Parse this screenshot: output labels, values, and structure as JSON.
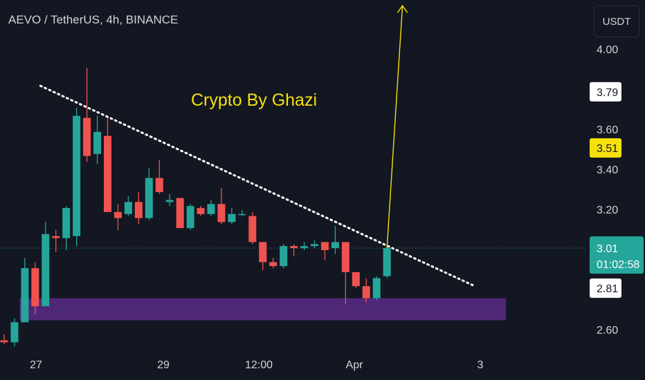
{
  "header": {
    "title": "AEVO / TetherUS, 4h, BINANCE"
  },
  "currency_button": {
    "label": "USDT"
  },
  "annotation": {
    "text": "Crypto By Ghazi"
  },
  "colors": {
    "up": "#26a69a",
    "down": "#ef5350",
    "background": "#131722",
    "annotation": "#f5e10a",
    "support_zone": "#5b2a86",
    "arrow": "#f5e10a"
  },
  "price_labels": [
    {
      "value": "3.79",
      "style": "white"
    },
    {
      "value": "3.51",
      "style": "yellow"
    },
    {
      "value": "2.81",
      "style": "white"
    }
  ],
  "last_price": {
    "value": "3.01",
    "countdown": "01:02:58"
  },
  "chart_data": {
    "type": "candlestick",
    "symbol": "AEVO/USDT",
    "timeframe": "4h",
    "exchange": "BINANCE",
    "y_ticks": [
      "4.00",
      "3.60",
      "3.40",
      "3.20",
      "2.60"
    ],
    "y_range": [
      2.5,
      4.2
    ],
    "x_ticks": [
      "27",
      "29",
      "12:00",
      "Apr",
      "3"
    ],
    "candles": [
      {
        "o": 2.55,
        "h": 2.58,
        "l": 2.53,
        "c": 2.54
      },
      {
        "o": 2.54,
        "h": 2.66,
        "l": 2.52,
        "c": 2.64
      },
      {
        "o": 2.64,
        "h": 2.96,
        "l": 2.64,
        "c": 2.91
      },
      {
        "o": 2.91,
        "h": 2.94,
        "l": 2.68,
        "c": 2.72
      },
      {
        "o": 2.72,
        "h": 3.14,
        "l": 2.72,
        "c": 3.08
      },
      {
        "o": 3.07,
        "h": 3.1,
        "l": 2.99,
        "c": 3.06
      },
      {
        "o": 3.06,
        "h": 3.22,
        "l": 3.0,
        "c": 3.21
      },
      {
        "o": 3.07,
        "h": 3.71,
        "l": 3.02,
        "c": 3.67
      },
      {
        "o": 3.66,
        "h": 3.91,
        "l": 3.44,
        "c": 3.47
      },
      {
        "o": 3.48,
        "h": 3.67,
        "l": 3.43,
        "c": 3.59
      },
      {
        "o": 3.57,
        "h": 3.67,
        "l": 3.19,
        "c": 3.19
      },
      {
        "o": 3.19,
        "h": 3.23,
        "l": 3.1,
        "c": 3.16
      },
      {
        "o": 3.18,
        "h": 3.27,
        "l": 3.17,
        "c": 3.24
      },
      {
        "o": 3.24,
        "h": 3.29,
        "l": 3.13,
        "c": 3.16
      },
      {
        "o": 3.16,
        "h": 3.41,
        "l": 3.15,
        "c": 3.36
      },
      {
        "o": 3.36,
        "h": 3.45,
        "l": 3.28,
        "c": 3.29
      },
      {
        "o": 3.24,
        "h": 3.28,
        "l": 3.22,
        "c": 3.25
      },
      {
        "o": 3.26,
        "h": 3.26,
        "l": 3.11,
        "c": 3.11
      },
      {
        "o": 3.11,
        "h": 3.23,
        "l": 3.1,
        "c": 3.22
      },
      {
        "o": 3.21,
        "h": 3.22,
        "l": 3.17,
        "c": 3.18
      },
      {
        "o": 3.18,
        "h": 3.25,
        "l": 3.17,
        "c": 3.23
      },
      {
        "o": 3.23,
        "h": 3.31,
        "l": 3.13,
        "c": 3.14
      },
      {
        "o": 3.14,
        "h": 3.21,
        "l": 3.13,
        "c": 3.18
      },
      {
        "o": 3.18,
        "h": 3.2,
        "l": 3.17,
        "c": 3.18
      },
      {
        "o": 3.17,
        "h": 3.19,
        "l": 3.03,
        "c": 3.04
      },
      {
        "o": 3.04,
        "h": 3.04,
        "l": 2.9,
        "c": 2.94
      },
      {
        "o": 2.94,
        "h": 2.96,
        "l": 2.91,
        "c": 2.92
      },
      {
        "o": 2.92,
        "h": 3.03,
        "l": 2.91,
        "c": 3.02
      },
      {
        "o": 3.02,
        "h": 3.03,
        "l": 2.97,
        "c": 3.01
      },
      {
        "o": 3.01,
        "h": 3.04,
        "l": 3.0,
        "c": 3.02
      },
      {
        "o": 3.02,
        "h": 3.05,
        "l": 3.01,
        "c": 3.03
      },
      {
        "o": 3.04,
        "h": 3.04,
        "l": 2.95,
        "c": 3.0
      },
      {
        "o": 3.01,
        "h": 3.12,
        "l": 2.98,
        "c": 3.04
      },
      {
        "o": 3.04,
        "h": 3.04,
        "l": 2.73,
        "c": 2.89
      },
      {
        "o": 2.89,
        "h": 2.89,
        "l": 2.81,
        "c": 2.82
      },
      {
        "o": 2.82,
        "h": 2.86,
        "l": 2.74,
        "c": 2.76
      },
      {
        "o": 2.76,
        "h": 2.87,
        "l": 2.75,
        "c": 2.86
      },
      {
        "o": 2.87,
        "h": 3.02,
        "l": 2.86,
        "c": 3.01
      }
    ],
    "trendline": {
      "from": {
        "candle": 3.5,
        "price": 3.82
      },
      "to": {
        "candle": 45.5,
        "price": 2.82
      },
      "style": "dotted"
    },
    "support_zone": {
      "price_low": 2.65,
      "price_high": 2.76,
      "candle_from": 1.5,
      "candle_to": 48.5
    },
    "target_arrow": {
      "from": {
        "candle": 37,
        "price": 3.01
      },
      "to": {
        "candle": 38.5,
        "price": 4.22
      }
    }
  }
}
